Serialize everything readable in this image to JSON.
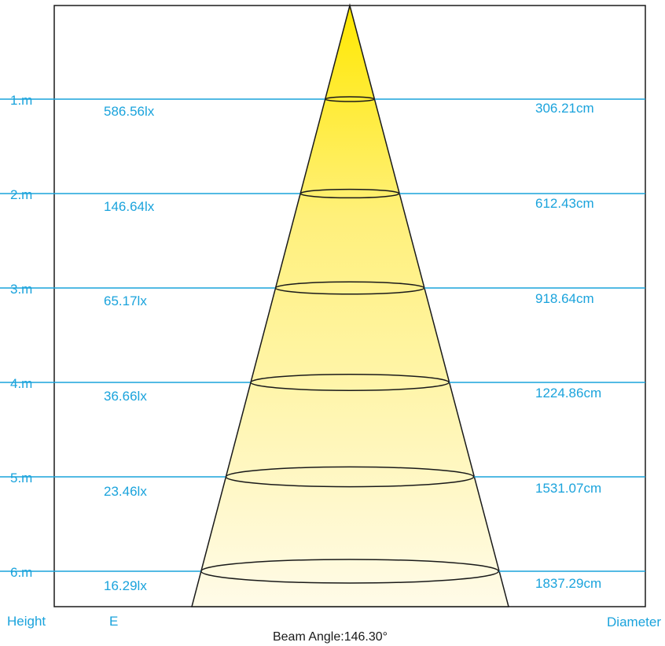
{
  "rows": [
    {
      "height": "1.m",
      "illuminance": "586.56lx",
      "diameter": "306.21cm"
    },
    {
      "height": "2.m",
      "illuminance": "146.64lx",
      "diameter": "612.43cm"
    },
    {
      "height": "3.m",
      "illuminance": "65.17lx",
      "diameter": "918.64cm"
    },
    {
      "height": "4.m",
      "illuminance": "36.66lx",
      "diameter": "1224.86cm"
    },
    {
      "height": "5.m",
      "illuminance": "23.46lx",
      "diameter": "1531.07cm"
    },
    {
      "height": "6.m",
      "illuminance": "16.29lx",
      "diameter": "1837.29cm"
    }
  ],
  "legend": {
    "height_label": "Height",
    "illuminance_label": "E",
    "diameter_label": "Diameter"
  },
  "beam_angle": "Beam Angle:146.30°",
  "colors": {
    "level_line": "#1aa3dc",
    "label_text": "#1aa3dc",
    "cone_top": "#ffe800",
    "cone_bottom": "#fffbe6",
    "outline": "#1a1a1a"
  }
}
